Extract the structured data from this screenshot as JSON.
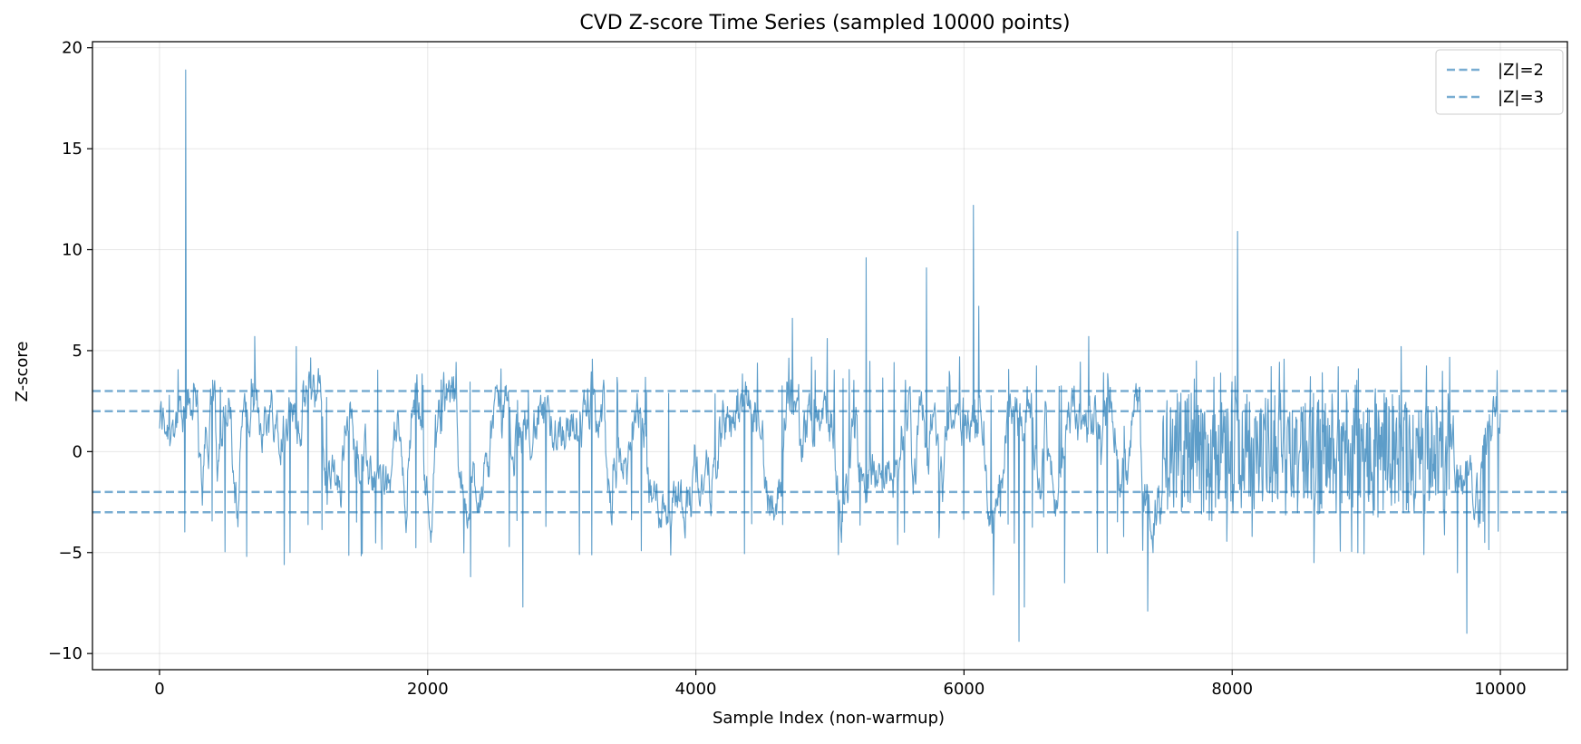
{
  "chart_data": {
    "type": "line",
    "title": "CVD Z-score Time Series (sampled 10000 points)",
    "xlabel": "Sample Index (non-warmup)",
    "ylabel": "Z-score",
    "xlim": [
      -500,
      10500
    ],
    "ylim": [
      -10.8,
      20.3
    ],
    "xticks": [
      0,
      2000,
      4000,
      6000,
      8000,
      10000
    ],
    "xtick_labels": [
      "0",
      "2000",
      "4000",
      "6000",
      "8000",
      "10000"
    ],
    "yticks": [
      -10,
      -5,
      0,
      5,
      10,
      15,
      20
    ],
    "ytick_labels": [
      "−10",
      "−5",
      "0",
      "5",
      "10",
      "15",
      "20"
    ],
    "grid": true,
    "legend_position": "top-right",
    "series": [
      {
        "style": "line",
        "color": "#1f77b4",
        "x_range": [
          0,
          9999
        ],
        "n_points": 10000,
        "value_range": [
          -9.4,
          18.9
        ],
        "peaks": [
          {
            "x": 195,
            "y": 18.9
          },
          {
            "x": 710,
            "y": 5.7
          },
          {
            "x": 1020,
            "y": 5.2
          },
          {
            "x": 5270,
            "y": 9.6
          },
          {
            "x": 5720,
            "y": 9.1
          },
          {
            "x": 6070,
            "y": 12.2
          },
          {
            "x": 6110,
            "y": 7.2
          },
          {
            "x": 4720,
            "y": 6.6
          },
          {
            "x": 4980,
            "y": 5.6
          },
          {
            "x": 8040,
            "y": 10.9
          },
          {
            "x": 6930,
            "y": 5.7
          },
          {
            "x": 9260,
            "y": 5.2
          },
          {
            "x": 2710,
            "y": -7.7
          },
          {
            "x": 2320,
            "y": -6.2
          },
          {
            "x": 6410,
            "y": -9.4
          },
          {
            "x": 6450,
            "y": -7.7
          },
          {
            "x": 6220,
            "y": -7.1
          },
          {
            "x": 6750,
            "y": -6.5
          },
          {
            "x": 7370,
            "y": -7.9
          },
          {
            "x": 9750,
            "y": -9.0
          },
          {
            "x": 9680,
            "y": -6.0
          },
          {
            "x": 930,
            "y": -5.6
          },
          {
            "x": 8610,
            "y": -5.5
          }
        ]
      }
    ],
    "reference_lines": [
      {
        "name": "|Z|=2",
        "values": [
          2,
          -2
        ],
        "style": "dashed",
        "color": "#1f77b4"
      },
      {
        "name": "|Z|=3",
        "values": [
          3,
          -3
        ],
        "style": "dashed",
        "color": "#1f77b4"
      }
    ]
  }
}
